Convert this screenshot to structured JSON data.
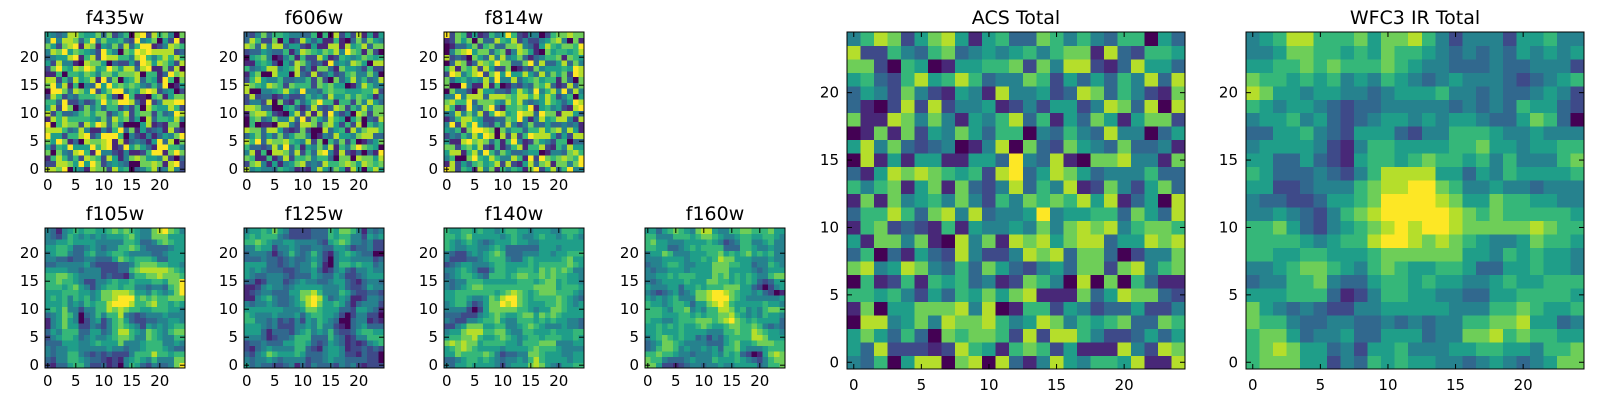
{
  "chart_data": [
    {
      "type": "heatmap",
      "title": "f435w",
      "size": 25,
      "xticks": [
        0,
        5,
        10,
        15,
        20
      ],
      "yticks": [
        0,
        5,
        10,
        15,
        20
      ],
      "xlim": [
        -0.5,
        24.5
      ],
      "ylim": [
        -0.5,
        24.5
      ],
      "peak": null,
      "colormap": "viridis",
      "grid": false
    },
    {
      "type": "heatmap",
      "title": "f606w",
      "size": 25,
      "xticks": [
        0,
        5,
        10,
        15,
        20
      ],
      "yticks": [
        0,
        5,
        10,
        15,
        20
      ],
      "xlim": [
        -0.5,
        24.5
      ],
      "ylim": [
        -0.5,
        24.5
      ],
      "peak": [
        12,
        13
      ],
      "colormap": "viridis",
      "grid": false
    },
    {
      "type": "heatmap",
      "title": "f814w",
      "size": 25,
      "xticks": [
        0,
        5,
        10,
        15,
        20
      ],
      "yticks": [
        0,
        5,
        10,
        15,
        20
      ],
      "xlim": [
        -0.5,
        24.5
      ],
      "ylim": [
        -0.5,
        24.5
      ],
      "peak": [
        13,
        13
      ],
      "colormap": "viridis",
      "grid": false
    },
    {
      "type": "heatmap",
      "title": "f105w",
      "size": 25,
      "xticks": [
        0,
        5,
        10,
        15,
        20
      ],
      "yticks": [
        0,
        5,
        10,
        15,
        20
      ],
      "xlim": [
        -0.5,
        24.5
      ],
      "ylim": [
        -0.5,
        24.5
      ],
      "peak": [
        13,
        12
      ],
      "colormap": "viridis",
      "grid": false
    },
    {
      "type": "heatmap",
      "title": "f125w",
      "size": 25,
      "xticks": [
        0,
        5,
        10,
        15,
        20
      ],
      "yticks": [
        0,
        5,
        10,
        15,
        20
      ],
      "xlim": [
        -0.5,
        24.5
      ],
      "ylim": [
        -0.5,
        24.5
      ],
      "peak": [
        12,
        11
      ],
      "colormap": "viridis",
      "grid": false
    },
    {
      "type": "heatmap",
      "title": "f140w",
      "size": 25,
      "xticks": [
        0,
        5,
        10,
        15,
        20
      ],
      "yticks": [
        0,
        5,
        10,
        15,
        20
      ],
      "xlim": [
        -0.5,
        24.5
      ],
      "ylim": [
        -0.5,
        24.5
      ],
      "peak": [
        12,
        12
      ],
      "colormap": "viridis",
      "grid": false
    },
    {
      "type": "heatmap",
      "title": "f160w",
      "size": 25,
      "xticks": [
        0,
        5,
        10,
        15,
        20
      ],
      "yticks": [
        0,
        5,
        10,
        15,
        20
      ],
      "xlim": [
        -0.5,
        24.5
      ],
      "ylim": [
        -0.5,
        24.5
      ],
      "peak": [
        13,
        12
      ],
      "colormap": "viridis",
      "grid": false
    },
    {
      "type": "heatmap",
      "title": "ACS Total",
      "size": 25,
      "xticks": [
        0,
        5,
        10,
        15,
        20
      ],
      "yticks": [
        0,
        5,
        10,
        15,
        20
      ],
      "xlim": [
        -0.5,
        24.5
      ],
      "ylim": [
        -0.5,
        24.5
      ],
      "peak": [
        13,
        12
      ],
      "colormap": "viridis",
      "grid": false
    },
    {
      "type": "heatmap",
      "title": "WFC3 IR Total",
      "size": 25,
      "xticks": [
        0,
        5,
        10,
        15,
        20
      ],
      "yticks": [
        0,
        5,
        10,
        15,
        20
      ],
      "xlim": [
        -0.5,
        24.5
      ],
      "ylim": [
        -0.5,
        24.5
      ],
      "peak": [
        12,
        12
      ],
      "colormap": "viridis",
      "grid": false
    }
  ],
  "colors": {
    "viridis": [
      "#440154",
      "#482878",
      "#3e4a89",
      "#31688e",
      "#26828e",
      "#1f9e89",
      "#35b779",
      "#6ece58",
      "#b5de2b",
      "#fde725"
    ]
  }
}
